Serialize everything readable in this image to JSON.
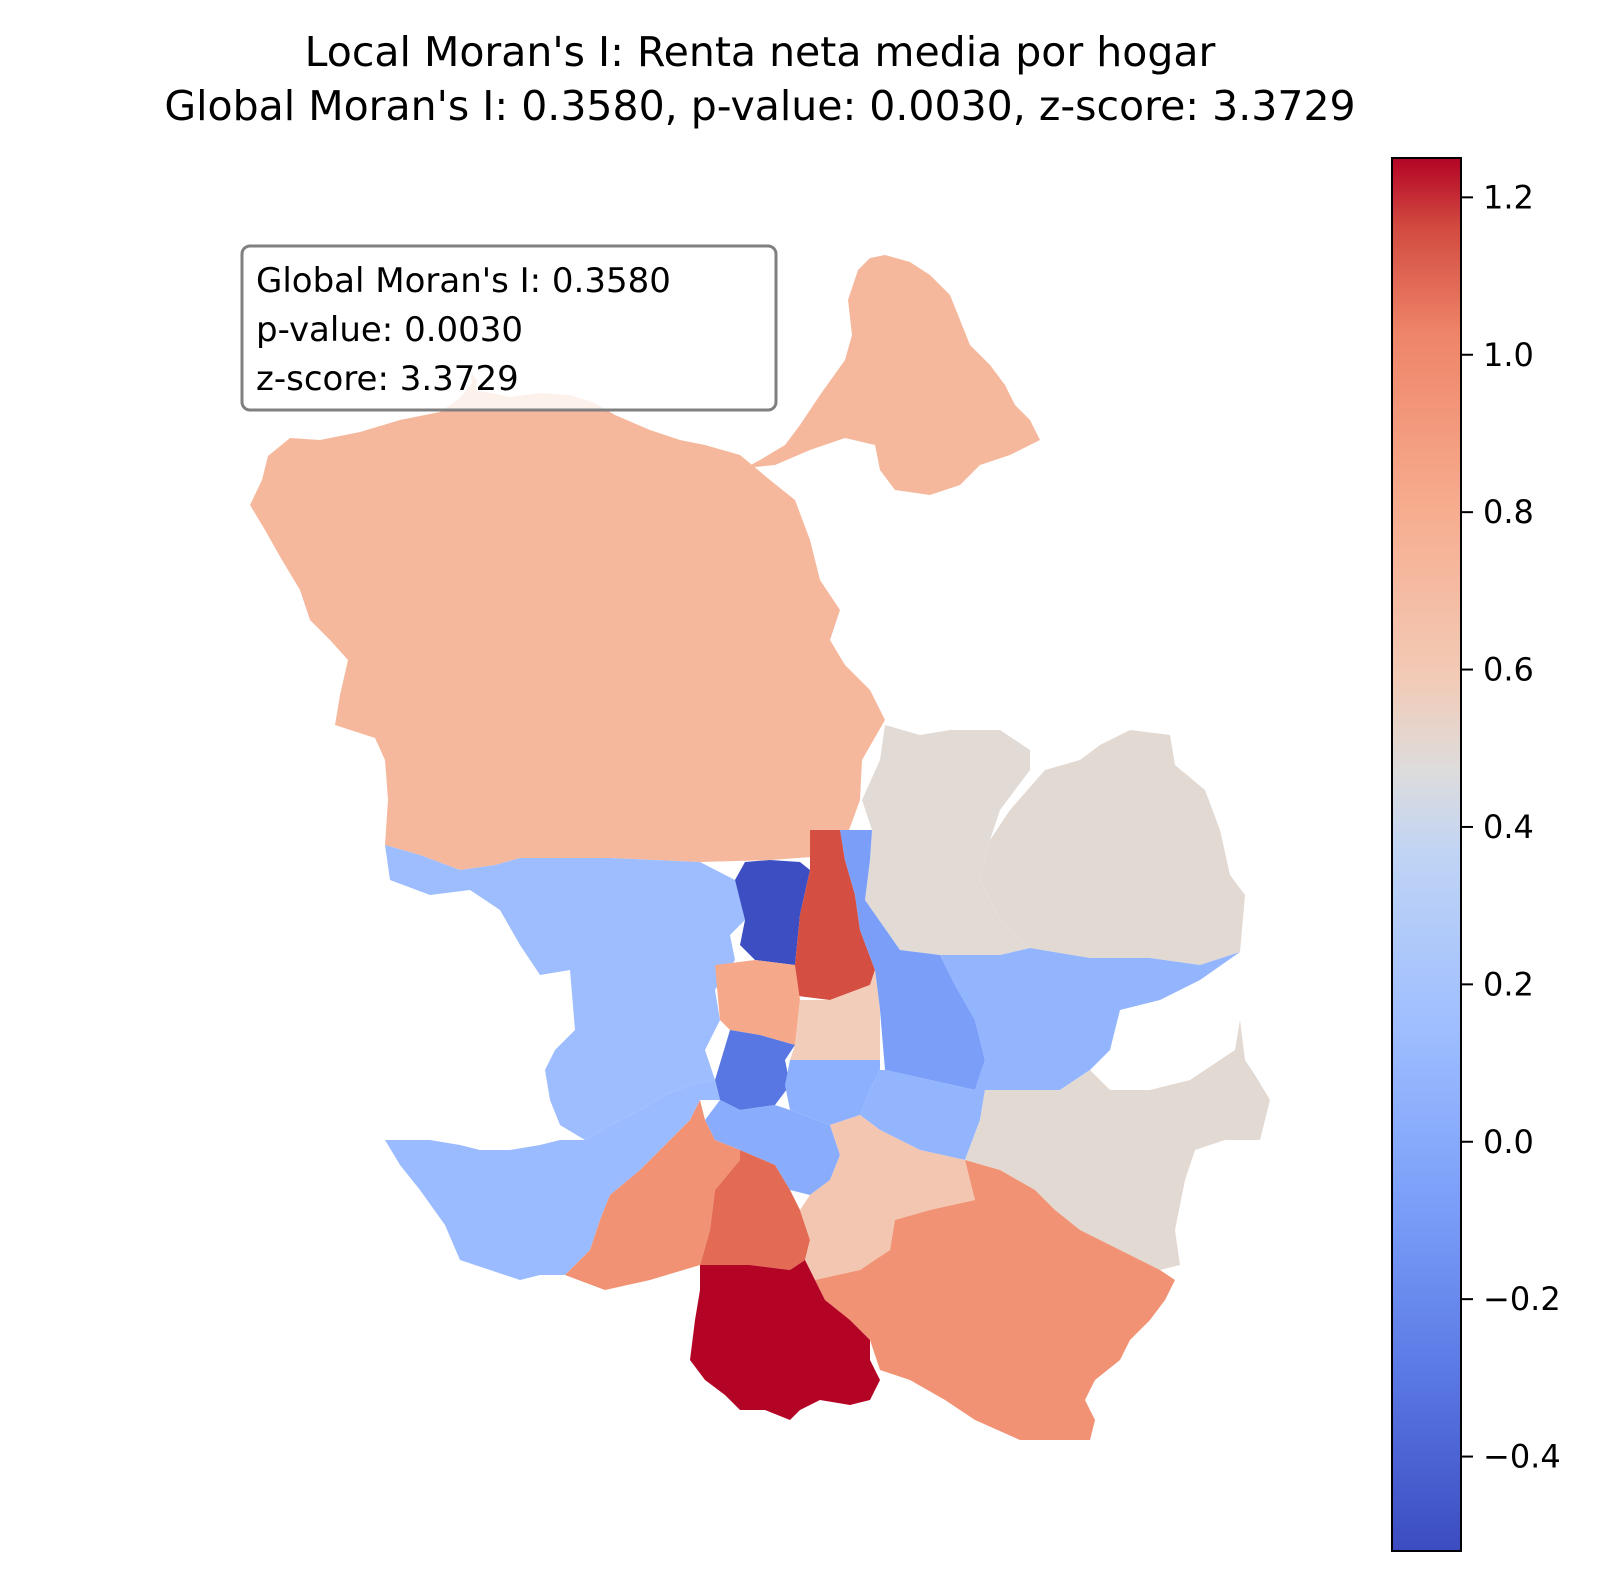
{
  "title": {
    "line1": "Local Moran's I: Renta neta media por hogar",
    "line2": "Global Moran's I: 0.3580, p-value: 0.0030, z-score: 3.3729"
  },
  "stats_box": {
    "line1": "Global Moran's I: 0.3580",
    "line2": "p-value: 0.0030",
    "line3": "z-score: 3.3729"
  },
  "colorbar": {
    "colormap": "coolwarm",
    "min": -0.52,
    "max": 1.25,
    "ticks": [
      {
        "value": 1.2,
        "label": "1.2"
      },
      {
        "value": 1.0,
        "label": "1.0"
      },
      {
        "value": 0.8,
        "label": "0.8"
      },
      {
        "value": 0.6,
        "label": "0.6"
      },
      {
        "value": 0.4,
        "label": "0.4"
      },
      {
        "value": 0.2,
        "label": "0.2"
      },
      {
        "value": 0.0,
        "label": "0.0"
      },
      {
        "value": -0.2,
        "label": "−0.2"
      },
      {
        "value": -0.4,
        "label": "−0.4"
      }
    ]
  },
  "map": {
    "region": "Madrid districts",
    "districts": [
      {
        "id": "fuencarral-el-pardo",
        "value": 0.68,
        "color": "#f6b89c"
      },
      {
        "id": "barajas",
        "value": 0.47,
        "color": "#e3d9d3"
      },
      {
        "id": "hortaleza",
        "value": 0.42,
        "color": "#e2dad5"
      },
      {
        "id": "moncloa-aravaca",
        "value": 0.02,
        "color": "#9ebdff"
      },
      {
        "id": "tetuan",
        "value": -0.48,
        "color": "#3c4ec2"
      },
      {
        "id": "chamartin",
        "value": 1.04,
        "color": "#d44e41"
      },
      {
        "id": "ciudad-lineal",
        "value": -0.08,
        "color": "#7b9ff9"
      },
      {
        "id": "chamberi",
        "value": 0.74,
        "color": "#f5a88a"
      },
      {
        "id": "salamanca",
        "value": 0.57,
        "color": "#f1cdba"
      },
      {
        "id": "san-blas",
        "value": -0.03,
        "color": "#93b5fe"
      },
      {
        "id": "centro",
        "value": -0.38,
        "color": "#5977e3"
      },
      {
        "id": "retiro",
        "value": -0.04,
        "color": "#8db0fe"
      },
      {
        "id": "moratalaz",
        "value": -0.01,
        "color": "#93b5fe"
      },
      {
        "id": "vicalvaro",
        "value": 0.43,
        "color": "#e3d9d3"
      },
      {
        "id": "latina",
        "value": 0.03,
        "color": "#9abbff"
      },
      {
        "id": "arganzuela",
        "value": -0.05,
        "color": "#89acfd"
      },
      {
        "id": "carabanchel",
        "value": 0.81,
        "color": "#f29274"
      },
      {
        "id": "usera",
        "value": 0.95,
        "color": "#e36b54"
      },
      {
        "id": "puente-de-vallecas",
        "value": 0.61,
        "color": "#f2c6b0"
      },
      {
        "id": "villa-de-vallecas",
        "value": 0.81,
        "color": "#f29274"
      },
      {
        "id": "villaverde",
        "value": 1.25,
        "color": "#b40426"
      }
    ]
  }
}
